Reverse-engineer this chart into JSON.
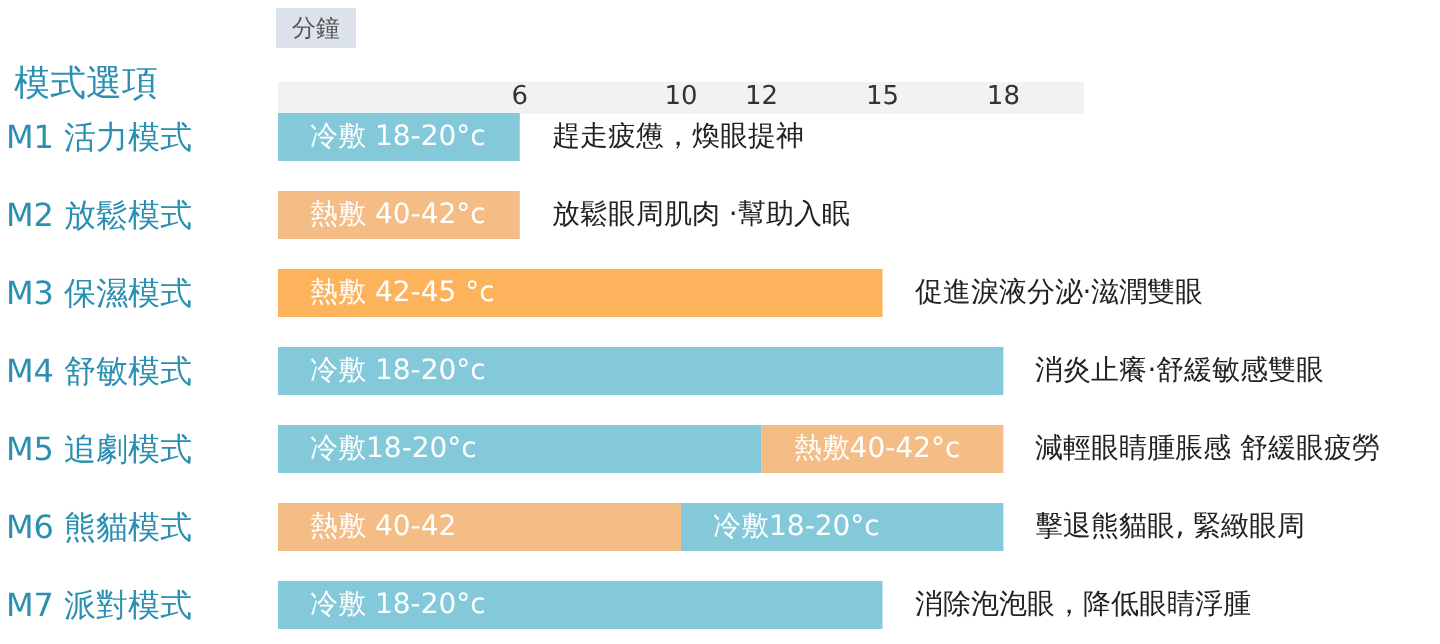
{
  "chart_data": {
    "type": "bar",
    "orientation": "horizontal",
    "stacked": true,
    "xlabel": "分鐘",
    "ylabel": "模式選項",
    "categories": [
      "M1 活力模式",
      "M2 放鬆模式",
      "M3 保濕模式",
      "M4 舒敏模式",
      "M5 追劇模式",
      "M6 熊貓模式",
      "M7 派對模式"
    ],
    "series": [
      {
        "values": [
          6,
          6,
          15,
          18,
          12,
          10,
          15
        ],
        "colors": [
          "#84c9d9",
          "#f5bd86",
          "#fdb35c",
          "#84c9d9",
          "#84c9d9",
          "#f5bd86",
          "#84c9d9"
        ],
        "value_labels": [
          "冷敷 18-20°c",
          "熱敷 40-42°c",
          "熱敷 42-45 °c",
          "冷敷 18-20°c",
          "冷敷18-20°c",
          "熱敷 40-42",
          "冷敷 18-20°c"
        ]
      },
      {
        "values": [
          null,
          null,
          null,
          null,
          6,
          8,
          null
        ],
        "colors": [
          null,
          null,
          null,
          null,
          "#f5bd86",
          "#84c9d9",
          null
        ],
        "value_labels": [
          null,
          null,
          null,
          null,
          "熱敷40-42°c",
          "冷敷18-20°c",
          null
        ]
      }
    ],
    "xlim": [
      0,
      20
    ],
    "xticks": [
      6,
      10,
      12,
      15,
      18
    ],
    "grid": false,
    "annotations": [
      {
        "text": "趕走疲憊，煥眼提神",
        "x": 6,
        "y": "M1 活力模式"
      },
      {
        "text": "放鬆眼周肌肉 ·幫助入眠",
        "x": 6,
        "y": "M2 放鬆模式"
      },
      {
        "text": "促進淚液分泌·滋潤雙眼",
        "x": 15,
        "y": "M3 保濕模式"
      },
      {
        "text": "消炎止癢·舒緩敏感雙眼",
        "x": 18,
        "y": "M4 舒敏模式"
      },
      {
        "text": "減輕眼睛腫脹感 舒緩眼疲勞",
        "x": 18,
        "y": "M5 追劇模式"
      },
      {
        "text": "擊退熊貓眼, 緊緻眼周",
        "x": 18,
        "y": "M6 熊貓模式"
      },
      {
        "text": "消除泡泡眼，降低眼睛浮腫",
        "x": 15,
        "y": "M7 派對模式"
      }
    ]
  }
}
